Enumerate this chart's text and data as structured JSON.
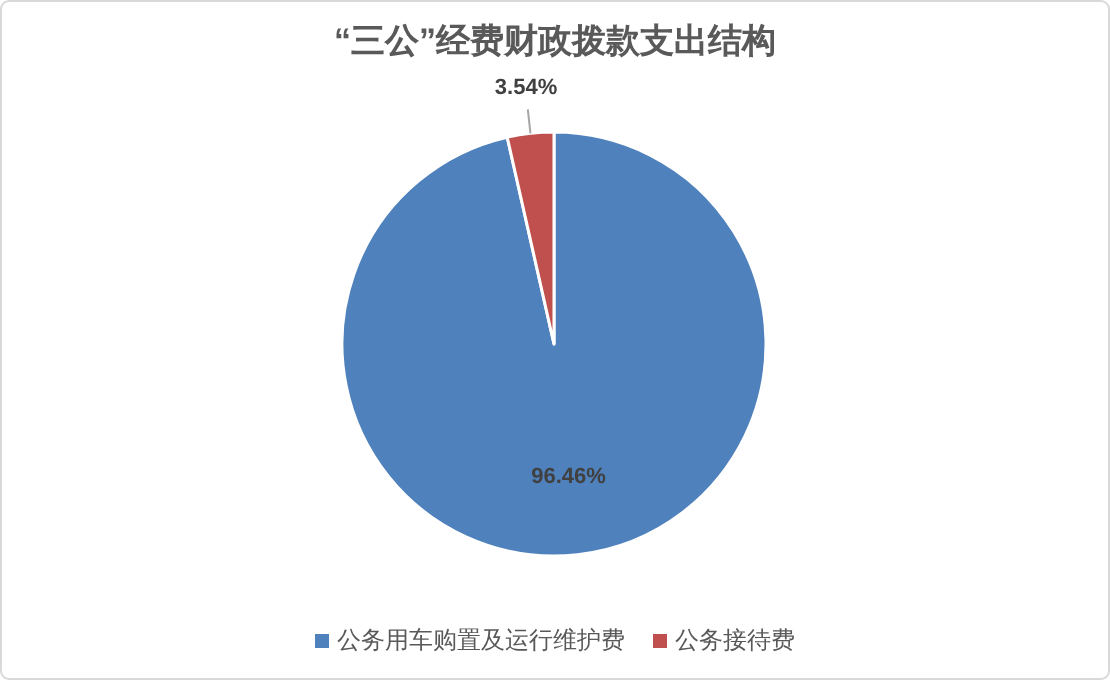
{
  "chart_data": {
    "type": "pie",
    "title": "“三公”经费财政拨款支出结构",
    "categories": [
      "公务用车购置及运行维护费",
      "公务接待费"
    ],
    "values": [
      96.46,
      3.54
    ],
    "colors": [
      "#4f81bd",
      "#c0504d"
    ],
    "value_labels": [
      "96.46%",
      "3.54%"
    ],
    "legend": "bottom"
  }
}
